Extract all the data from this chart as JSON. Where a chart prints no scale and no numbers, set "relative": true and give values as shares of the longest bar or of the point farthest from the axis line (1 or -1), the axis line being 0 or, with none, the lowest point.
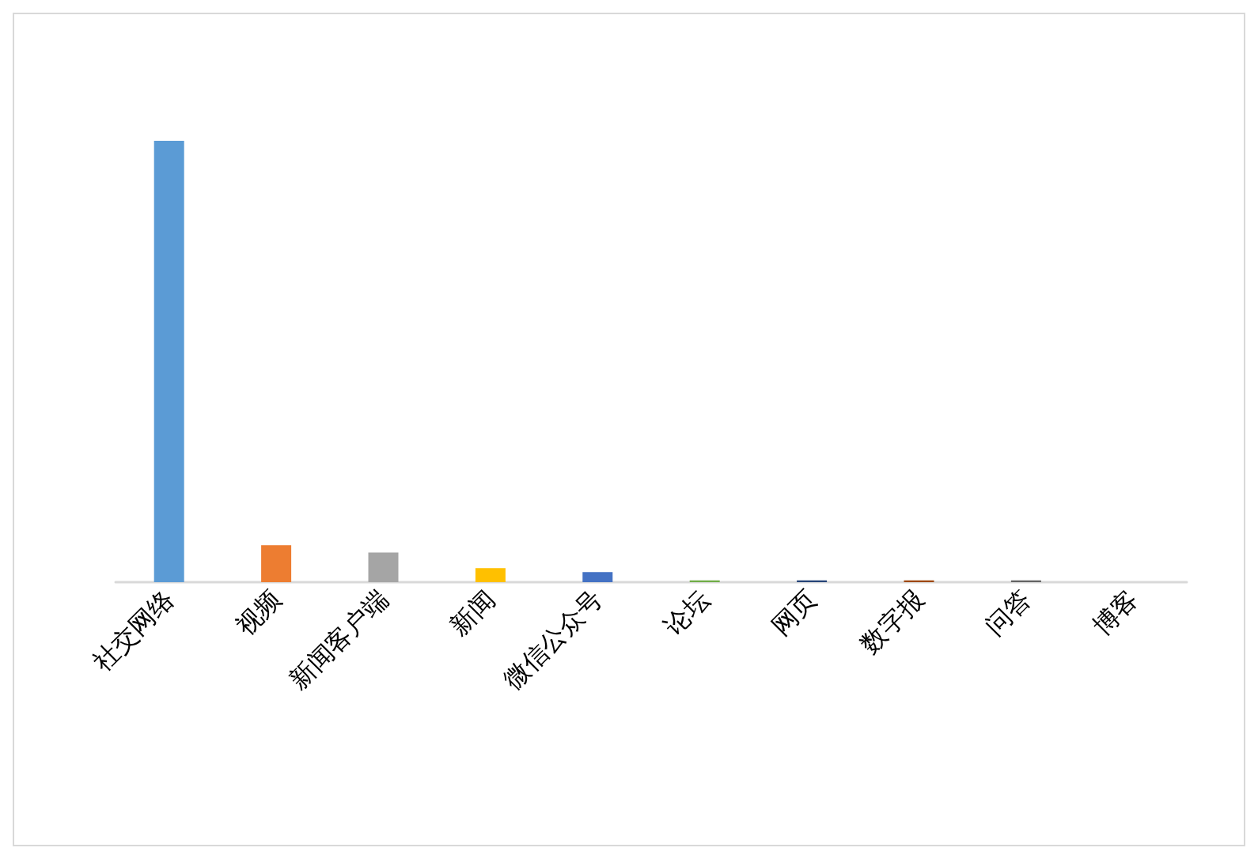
{
  "chart_data": {
    "type": "bar",
    "relative": true,
    "categories": [
      "社交网络",
      "视频",
      "新闻客户端",
      "新闻",
      "微信公众号",
      "论坛",
      "网页",
      "数字报",
      "问答",
      "博客"
    ],
    "values": [
      1,
      0.084,
      0.067,
      0.032,
      0.023,
      0.004,
      0.004,
      0.004,
      0.004,
      0
    ],
    "colors": [
      "#5b9bd5",
      "#ed7d31",
      "#a5a5a5",
      "#ffc000",
      "#4472c4",
      "#70ad47",
      "#264478",
      "#9e480e",
      "#636363",
      "#997300"
    ],
    "data_labels": false
  }
}
